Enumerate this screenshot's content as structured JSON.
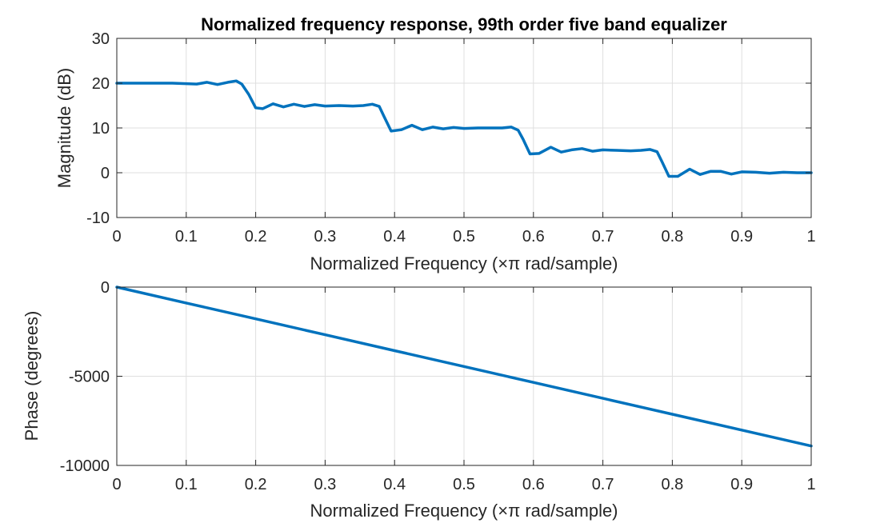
{
  "figure": {
    "line_color": "#0072BD",
    "grid_color": "#DFDFDF",
    "axis_color": "#262626"
  },
  "chart_data": [
    {
      "type": "line",
      "title": "Normalized frequency response, 99th order five band equalizer",
      "xlabel": "Normalized Frequency  (×π rad/sample)",
      "ylabel": "Magnitude (dB)",
      "xlim": [
        0,
        1
      ],
      "ylim": [
        -10,
        30
      ],
      "xticks": [
        0,
        0.1,
        0.2,
        0.3,
        0.4,
        0.5,
        0.6,
        0.7,
        0.8,
        0.9,
        1
      ],
      "xtick_labels": [
        "0",
        "0.1",
        "0.2",
        "0.3",
        "0.4",
        "0.5",
        "0.6",
        "0.7",
        "0.8",
        "0.9",
        "1"
      ],
      "yticks": [
        -10,
        0,
        10,
        20,
        30
      ],
      "ytick_labels": [
        "-10",
        "0",
        "10",
        "20",
        "30"
      ],
      "grid": true,
      "series": [
        {
          "x": [
            0,
            0.02,
            0.04,
            0.06,
            0.08,
            0.1,
            0.115,
            0.13,
            0.145,
            0.16,
            0.172,
            0.18,
            0.19,
            0.2,
            0.21,
            0.225,
            0.24,
            0.255,
            0.27,
            0.285,
            0.3,
            0.32,
            0.34,
            0.355,
            0.368,
            0.378,
            0.385,
            0.395,
            0.41,
            0.425,
            0.44,
            0.455,
            0.47,
            0.485,
            0.5,
            0.52,
            0.54,
            0.555,
            0.568,
            0.578,
            0.585,
            0.595,
            0.608,
            0.625,
            0.64,
            0.655,
            0.67,
            0.685,
            0.7,
            0.72,
            0.74,
            0.755,
            0.768,
            0.778,
            0.785,
            0.795,
            0.808,
            0.825,
            0.84,
            0.855,
            0.87,
            0.885,
            0.9,
            0.92,
            0.94,
            0.96,
            0.98,
            1
          ],
          "y": [
            20,
            20,
            20,
            20,
            20,
            19.9,
            19.8,
            20.2,
            19.7,
            20.2,
            20.5,
            19.8,
            17.5,
            14.5,
            14.3,
            15.4,
            14.7,
            15.3,
            14.8,
            15.2,
            14.9,
            15,
            14.9,
            15,
            15.3,
            14.8,
            12.5,
            9.3,
            9.6,
            10.6,
            9.6,
            10.2,
            9.8,
            10.1,
            9.9,
            10,
            10,
            10,
            10.2,
            9.5,
            7.5,
            4.2,
            4.3,
            5.7,
            4.6,
            5.1,
            5.4,
            4.8,
            5.1,
            5,
            4.9,
            5,
            5.2,
            4.7,
            2.5,
            -0.8,
            -0.8,
            0.8,
            -0.4,
            0.3,
            0.3,
            -0.3,
            0.2,
            0.1,
            -0.1,
            0.1,
            0,
            0
          ]
        }
      ]
    },
    {
      "type": "line",
      "title": "",
      "xlabel": "Normalized Frequency  (×π rad/sample)",
      "ylabel": "Phase (degrees)",
      "xlim": [
        0,
        1
      ],
      "ylim": [
        -10000,
        0
      ],
      "xticks": [
        0,
        0.1,
        0.2,
        0.3,
        0.4,
        0.5,
        0.6,
        0.7,
        0.8,
        0.9,
        1
      ],
      "xtick_labels": [
        "0",
        "0.1",
        "0.2",
        "0.3",
        "0.4",
        "0.5",
        "0.6",
        "0.7",
        "0.8",
        "0.9",
        "1"
      ],
      "yticks": [
        -10000,
        -5000,
        0
      ],
      "ytick_labels": [
        "-10000",
        "-5000",
        "0"
      ],
      "grid": true,
      "series": [
        {
          "x": [
            0,
            0.1,
            0.2,
            0.3,
            0.4,
            0.5,
            0.6,
            0.7,
            0.8,
            0.9,
            1
          ],
          "y": [
            0,
            -891,
            -1782,
            -2673,
            -3564,
            -4455,
            -5346,
            -6237,
            -7128,
            -8019,
            -8910
          ]
        }
      ]
    }
  ]
}
